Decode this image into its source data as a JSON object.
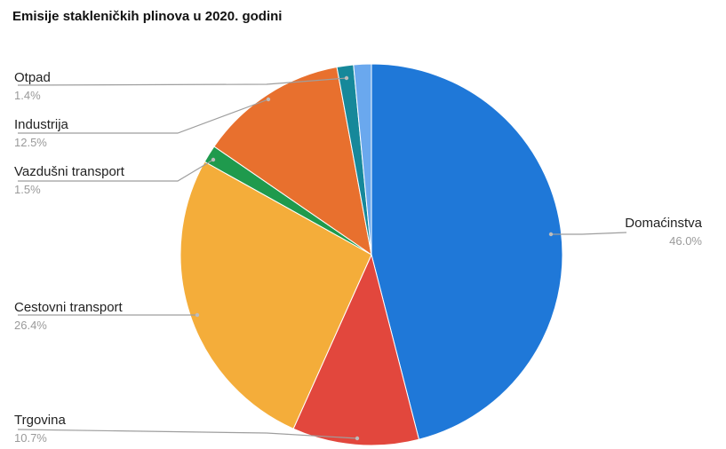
{
  "chart_data": {
    "type": "pie",
    "title": "Emisije stakleničkih plinova u 2020. godini",
    "slices": [
      {
        "label": "Domaćinstva",
        "value": 46.0,
        "display": "46.0%",
        "color": "#1f78d8"
      },
      {
        "label": "Trgovina",
        "value": 10.7,
        "display": "10.7%",
        "color": "#e2473d"
      },
      {
        "label": "Cestovni transport",
        "value": 26.4,
        "display": "26.4%",
        "color": "#f4ad3a"
      },
      {
        "label": "Vazdušni transport",
        "value": 1.5,
        "display": "1.5%",
        "color": "#1f9a4d"
      },
      {
        "label": "Industrija",
        "value": 12.5,
        "display": "12.5%",
        "color": "#e8702e"
      },
      {
        "label": "Otpad",
        "value": 1.4,
        "display": "1.4%",
        "color": "#16889a"
      },
      {
        "label": "",
        "value": 1.5,
        "display": "",
        "color": "#6aa8ee"
      }
    ],
    "start_direction": "clockwise from top"
  }
}
